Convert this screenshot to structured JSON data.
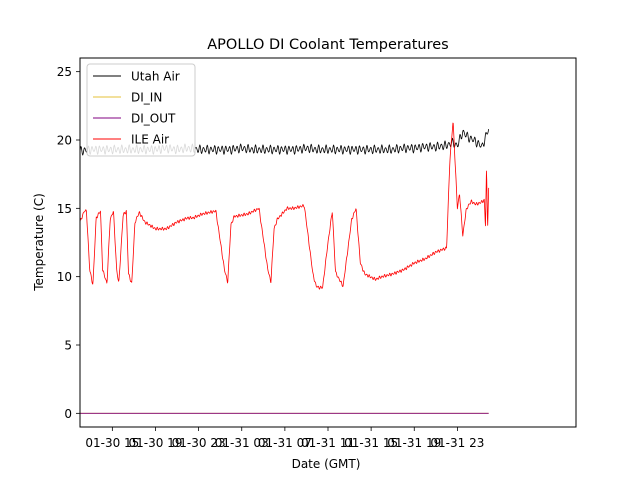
{
  "chart_data": {
    "type": "line",
    "title": "APOLLO DI Coolant Temperatures",
    "xlabel": "Date (GMT)",
    "ylabel": "Temperature (C)",
    "xlim": [
      12,
      58
    ],
    "ylim": [
      -1,
      26
    ],
    "xticks": [
      {
        "value": 15,
        "label": "01-30 15"
      },
      {
        "value": 19,
        "label": "01-30 19"
      },
      {
        "value": 23,
        "label": "01-30 23"
      },
      {
        "value": 27,
        "label": "01-31 03"
      },
      {
        "value": 31,
        "label": "01-31 07"
      },
      {
        "value": 35,
        "label": "01-31 11"
      },
      {
        "value": 39,
        "label": "01-31 15"
      },
      {
        "value": 43,
        "label": "01-31 19"
      },
      {
        "value": 47,
        "label": "01-31 23"
      }
    ],
    "yticks": [
      {
        "value": 0,
        "label": "0"
      },
      {
        "value": 5,
        "label": "5"
      },
      {
        "value": 10,
        "label": "10"
      },
      {
        "value": 15,
        "label": "15"
      },
      {
        "value": 20,
        "label": "20"
      },
      {
        "value": 25,
        "label": "25"
      }
    ],
    "legend": {
      "location": "upper-left",
      "entries": [
        {
          "name": "Utah Air",
          "color": "#000000"
        },
        {
          "name": "DI_IN",
          "color": "#e5c13a"
        },
        {
          "name": "DI_OUT",
          "color": "#800080"
        },
        {
          "name": "ILE Air",
          "color": "#ff0000"
        }
      ]
    },
    "series": [
      {
        "name": "Utah Air",
        "color": "#000000",
        "x": [
          12,
          13,
          14,
          15,
          16,
          17,
          18,
          19,
          20,
          21,
          22,
          23,
          24,
          25,
          26,
          27,
          28,
          29,
          30,
          31,
          32,
          33,
          34,
          35,
          36,
          37,
          38,
          39,
          40,
          41,
          42,
          43,
          44,
          45,
          46,
          46.5,
          47,
          47.5,
          48,
          48.5,
          49,
          49.3,
          49.6,
          49.9
        ],
        "y": [
          19.2,
          19.3,
          19.3,
          19.3,
          19.3,
          19.3,
          19.3,
          19.3,
          19.4,
          19.3,
          19.4,
          19.3,
          19.3,
          19.3,
          19.3,
          19.4,
          19.3,
          19.3,
          19.3,
          19.3,
          19.3,
          19.4,
          19.3,
          19.3,
          19.3,
          19.3,
          19.3,
          19.3,
          19.3,
          19.3,
          19.4,
          19.4,
          19.5,
          19.5,
          19.6,
          19.8,
          19.6,
          20.6,
          20.2,
          20.0,
          19.7,
          19.5,
          20.2,
          20.8
        ],
        "noise_amplitude": 0.35,
        "noise_cycles": 110
      },
      {
        "name": "DI_IN",
        "color": "#e5c13a",
        "x": [
          12,
          49.9
        ],
        "y": [
          0,
          0
        ]
      },
      {
        "name": "DI_OUT",
        "color": "#800080",
        "x": [
          12,
          49.9
        ],
        "y": [
          0,
          0
        ]
      },
      {
        "name": "ILE Air",
        "color": "#ff0000",
        "x": [
          12,
          12.4,
          12.6,
          12.9,
          13.2,
          13.5,
          13.9,
          14.1,
          14.5,
          14.8,
          15.1,
          15.4,
          15.6,
          16.0,
          16.3,
          16.5,
          16.8,
          17.1,
          17.5,
          18,
          19,
          20,
          21,
          22,
          22.5,
          23.4,
          24.6,
          25.4,
          25.7,
          26,
          26.3,
          27,
          27.6,
          28.6,
          29.4,
          29.7,
          30,
          30.3,
          31.2,
          31.8,
          32.8,
          33.6,
          33.9,
          34.2,
          34.5,
          35,
          35.4,
          35.7,
          36.4,
          37.2,
          37.6,
          38,
          38.4,
          39.4,
          40,
          41,
          42,
          43,
          44,
          45,
          46,
          46.3,
          46.6,
          47.0,
          47.2,
          47.5,
          47.8,
          48.0,
          48.3,
          48.7,
          49.1,
          49.5,
          49.6,
          49.7,
          49.8,
          49.9
        ],
        "y": [
          14.0,
          14.8,
          14.8,
          10.5,
          9.4,
          14.3,
          14.8,
          10.5,
          9.5,
          14.2,
          14.8,
          10.5,
          9.5,
          14.5,
          14.8,
          10.2,
          9.5,
          14.0,
          14.7,
          14.0,
          13.5,
          13.5,
          14.0,
          14.3,
          14.3,
          14.6,
          14.8,
          10.5,
          9.6,
          13.8,
          14.4,
          14.5,
          14.6,
          15.0,
          10.6,
          9.6,
          13.5,
          14.2,
          15.0,
          15.0,
          15.2,
          10.2,
          9.3,
          9.2,
          9.2,
          12.5,
          14.8,
          10.3,
          9.3,
          14.2,
          15.0,
          11.0,
          10.2,
          9.8,
          10.0,
          10.2,
          10.5,
          11.0,
          11.3,
          11.8,
          12.1,
          18.5,
          21.4,
          15.0,
          16.1,
          13.0,
          14.8,
          15.2,
          15.5,
          15.3,
          15.4,
          15.6,
          13.6,
          18.0,
          13.5,
          16.5
        ],
        "noise_amplitude": 0.12,
        "noise_cycles": 160
      }
    ]
  }
}
